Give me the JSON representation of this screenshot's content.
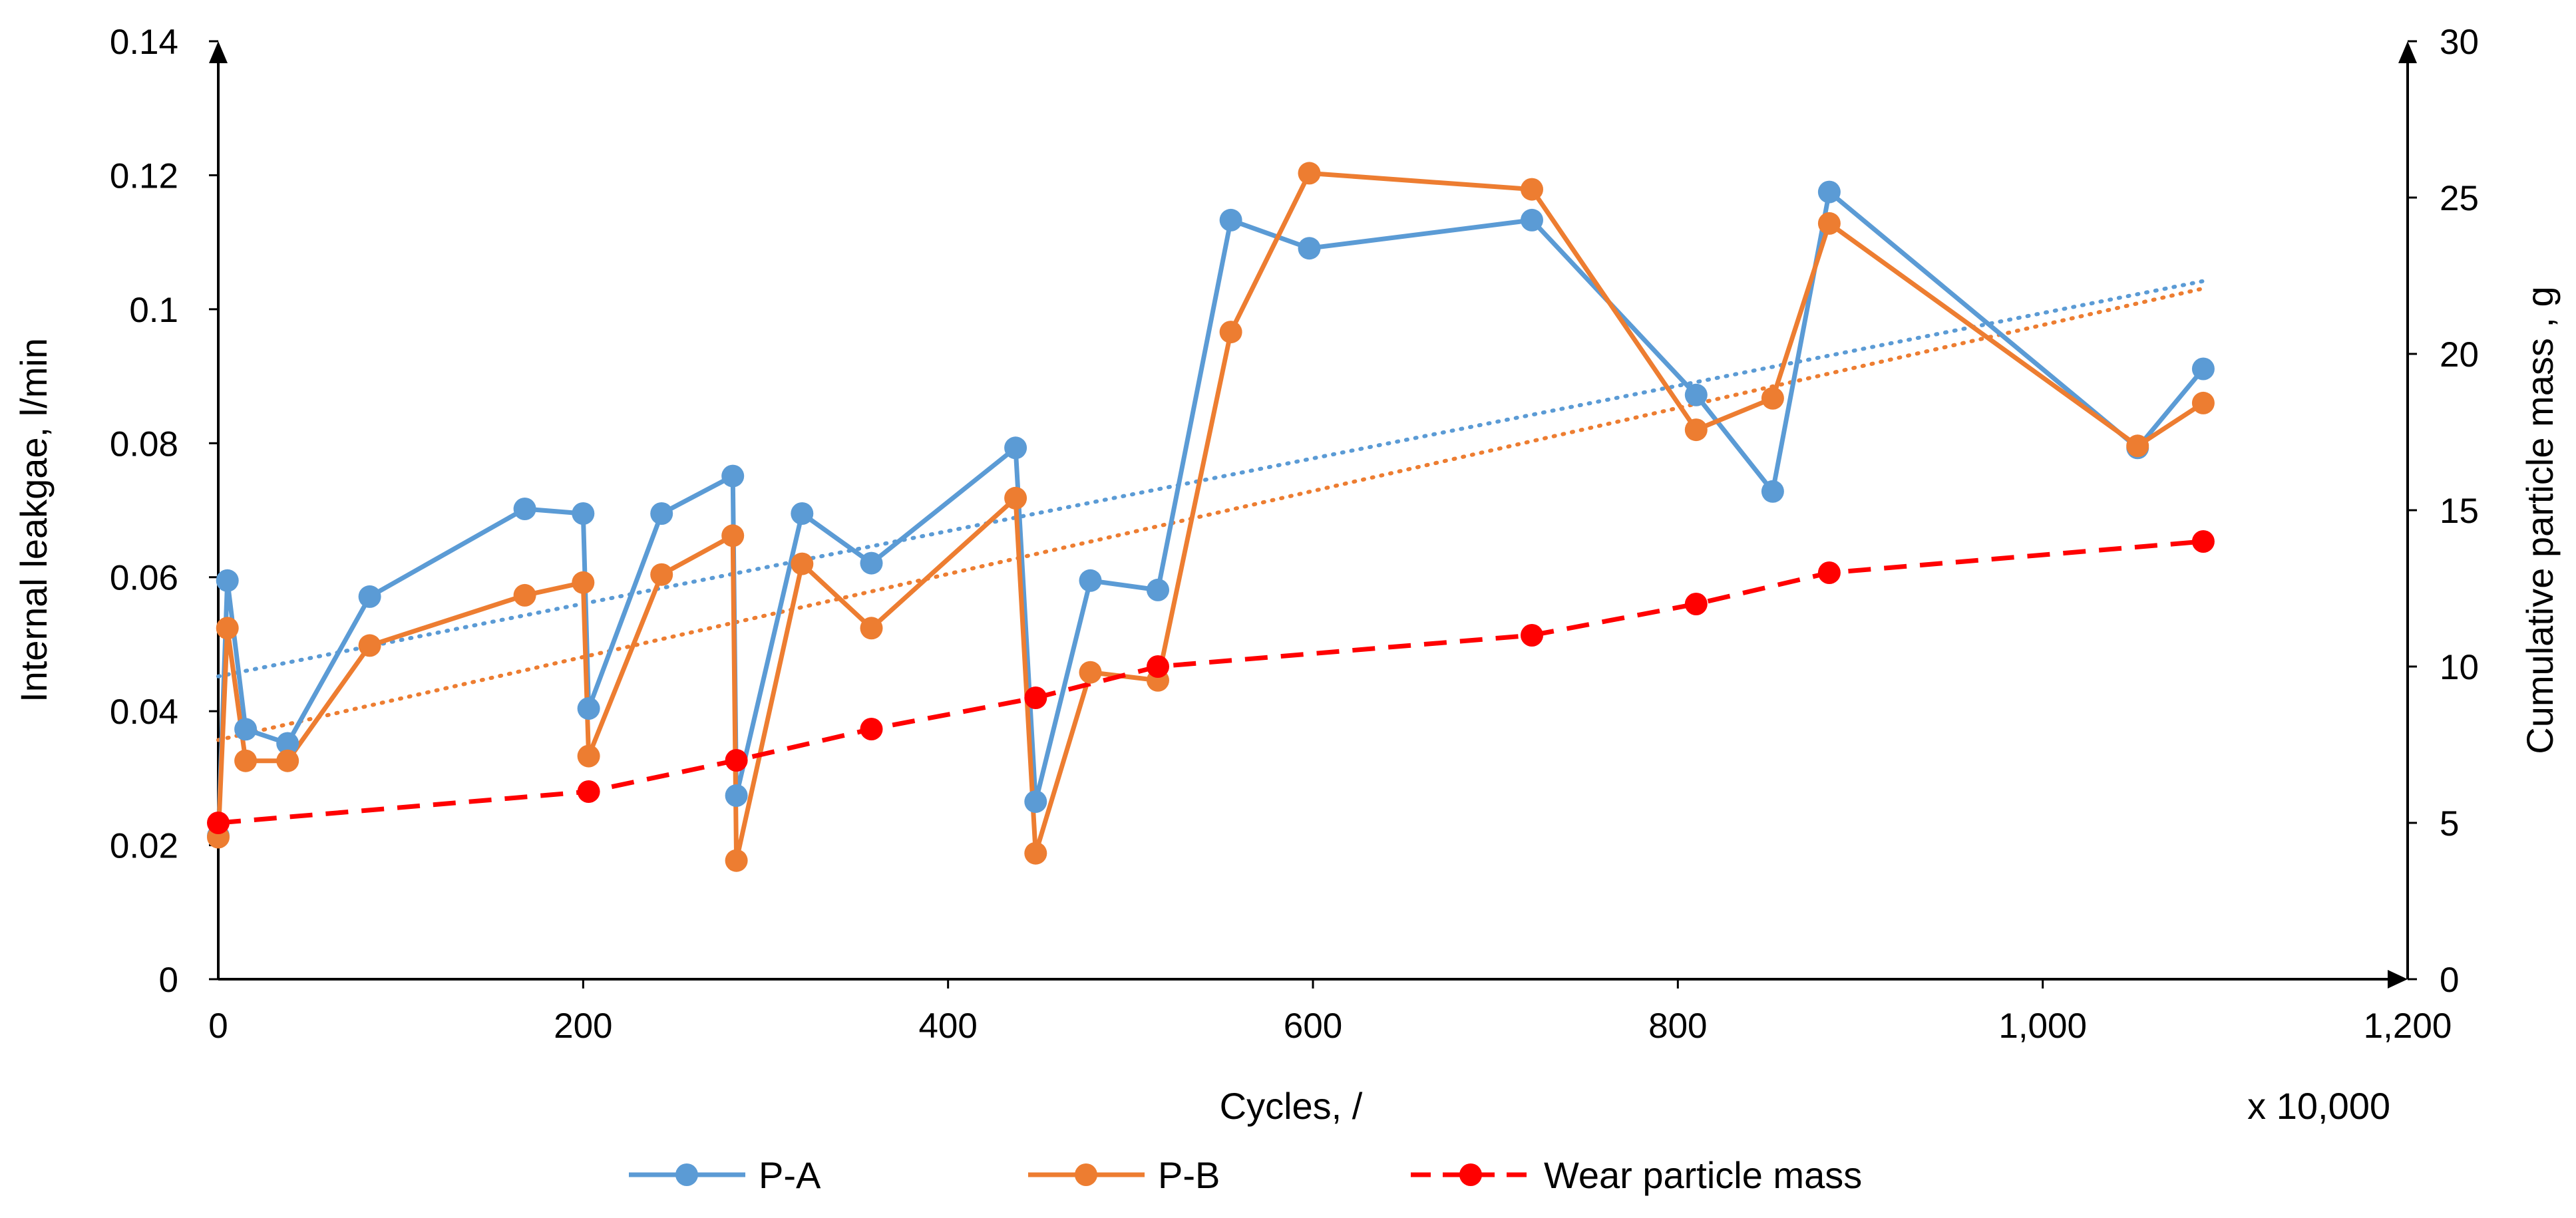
{
  "chart_data": {
    "type": "line",
    "title": "",
    "xlabel": "Cycles, /",
    "x_unit_note": "x 10,000",
    "ylabel": "Internal leakgae, l/min",
    "y2label": "Cumulative particle mass , g",
    "xlim": [
      0,
      1200
    ],
    "ylim": [
      0,
      0.14
    ],
    "y2lim": [
      0,
      30
    ],
    "x_ticks": [
      "0",
      "200",
      "400",
      "600",
      "800",
      "1,000",
      "1,200"
    ],
    "y_ticks": [
      "0",
      "0.02",
      "0.04",
      "0.06",
      "0.08",
      "0.1",
      "0.12",
      "0.14"
    ],
    "y2_ticks": [
      "0",
      "5",
      "10",
      "15",
      "20",
      "25",
      "30"
    ],
    "grid": false,
    "legend_position": "bottom",
    "series": [
      {
        "name": "P-A",
        "axis": "left",
        "color": "#5B9BD5",
        "style": "solid-markers",
        "x": [
          0,
          5,
          15,
          38,
          83,
          168,
          200,
          203,
          243,
          282,
          284,
          320,
          358,
          437,
          448,
          478,
          515,
          555,
          598,
          720,
          810,
          852,
          883,
          1052,
          1088
        ],
        "y": [
          0.0214,
          0.0595,
          0.0373,
          0.0352,
          0.0571,
          0.0702,
          0.0695,
          0.0404,
          0.0695,
          0.0751,
          0.0274,
          0.0695,
          0.0621,
          0.0793,
          0.0265,
          0.0595,
          0.0581,
          0.1133,
          0.1091,
          0.1133,
          0.0872,
          0.0728,
          0.1175,
          0.0793,
          0.0911
        ],
        "trendline": {
          "x0": 0,
          "y0": 0.0452,
          "x1": 1088,
          "y1": 0.1042,
          "style": "dotted"
        }
      },
      {
        "name": "P-B",
        "axis": "left",
        "color": "#ED7D31",
        "style": "solid-markers",
        "x": [
          0,
          5,
          15,
          38,
          83,
          168,
          200,
          203,
          243,
          282,
          284,
          320,
          358,
          437,
          448,
          478,
          515,
          555,
          598,
          720,
          810,
          852,
          883,
          1052,
          1088
        ],
        "y": [
          0.0212,
          0.0524,
          0.0326,
          0.0326,
          0.0498,
          0.0573,
          0.0592,
          0.0333,
          0.0604,
          0.0662,
          0.0177,
          0.062,
          0.0524,
          0.0718,
          0.0188,
          0.0458,
          0.0446,
          0.0966,
          0.1203,
          0.1179,
          0.082,
          0.0867,
          0.1128,
          0.0796,
          0.086
        ],
        "trendline": {
          "x0": 0,
          "y0": 0.0357,
          "x1": 1088,
          "y1": 0.1031,
          "style": "dotted"
        }
      },
      {
        "name": "Wear particle mass",
        "axis": "right",
        "color": "#FF0000",
        "style": "dashed-markers",
        "x": [
          0,
          203,
          284,
          358,
          448,
          515,
          720,
          810,
          883,
          1088
        ],
        "y": [
          5,
          6,
          7,
          8,
          9,
          10,
          11,
          12,
          13,
          14
        ]
      }
    ]
  }
}
